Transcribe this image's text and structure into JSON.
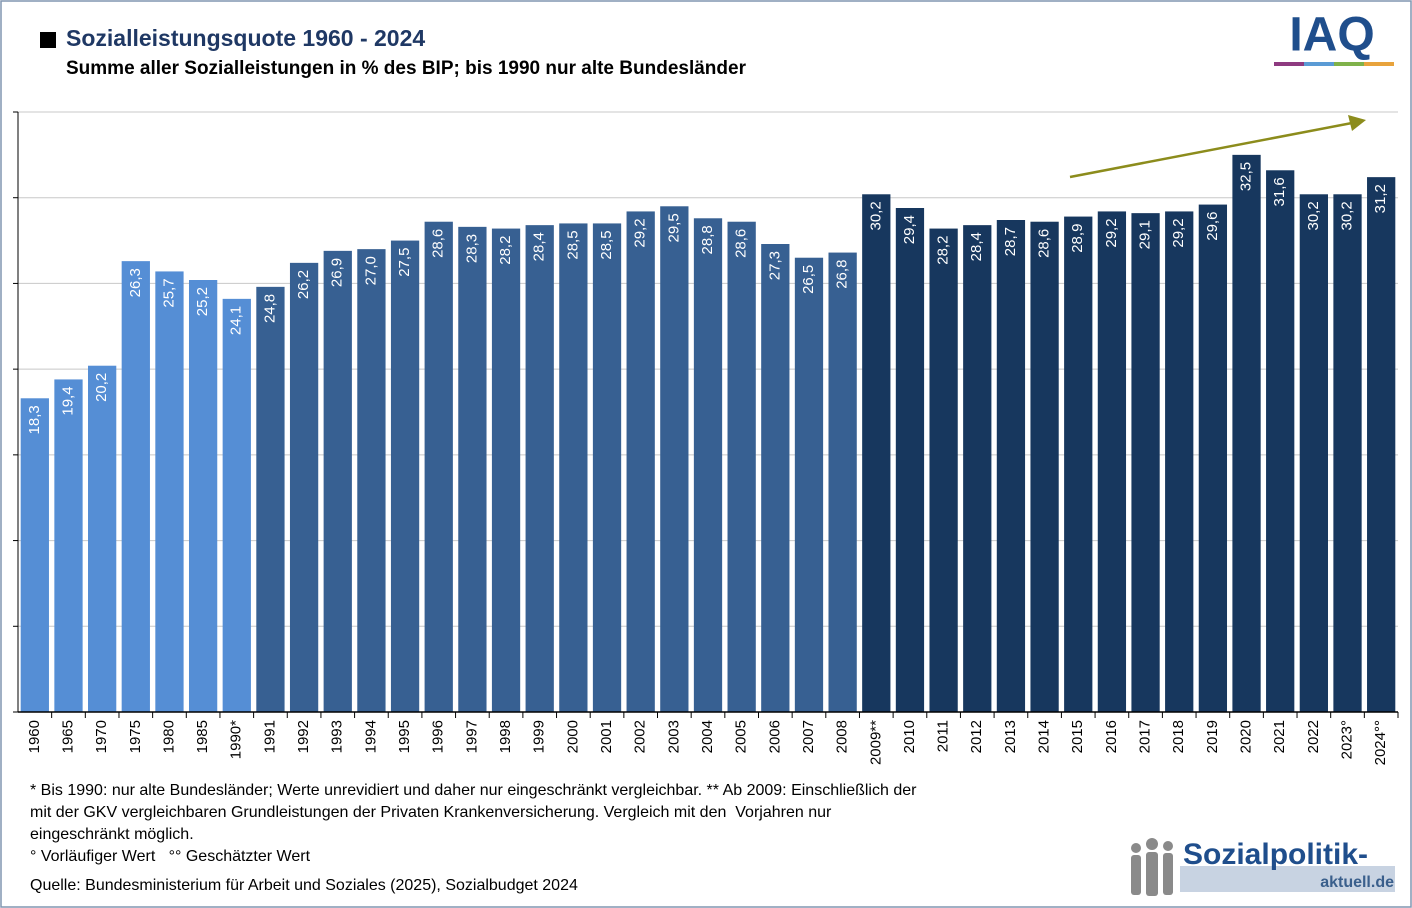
{
  "chart_data": {
    "type": "bar",
    "title": "Sozialleistungsquote 1960 - 2024",
    "subtitle": "Summe aller Sozialleistungen in % des BIP; bis 1990 nur alte Bundesländer",
    "categories": [
      "1960",
      "1965",
      "1970",
      "1975",
      "1980",
      "1985",
      "1990*",
      "1991",
      "1992",
      "1993",
      "1994",
      "1995",
      "1996",
      "1997",
      "1998",
      "1999",
      "2000",
      "2001",
      "2002",
      "2003",
      "2004",
      "2005",
      "2006",
      "2007",
      "2008",
      "2009**",
      "2010",
      "2011",
      "2012",
      "2013",
      "2014",
      "2015",
      "2016",
      "2017",
      "2018",
      "2019",
      "2020",
      "2021",
      "2022",
      "2023°",
      "2024°°"
    ],
    "values": [
      18.3,
      19.4,
      20.2,
      26.3,
      25.7,
      25.2,
      24.1,
      24.8,
      26.2,
      26.9,
      27.0,
      27.5,
      28.6,
      28.3,
      28.2,
      28.4,
      28.5,
      28.5,
      29.2,
      29.5,
      28.8,
      28.6,
      27.3,
      26.5,
      26.8,
      30.2,
      29.4,
      28.2,
      28.4,
      28.7,
      28.6,
      28.9,
      29.2,
      29.1,
      29.2,
      29.6,
      32.5,
      31.6,
      30.2,
      30.2,
      31.2
    ],
    "value_labels": [
      "18,3",
      "19,4",
      "20,2",
      "26,3",
      "25,7",
      "25,2",
      "24,1",
      "24,8",
      "26,2",
      "26,9",
      "27,0",
      "27,5",
      "28,6",
      "28,3",
      "28,2",
      "28,4",
      "28,5",
      "28,5",
      "29,2",
      "29,5",
      "28,8",
      "28,6",
      "27,3",
      "26,5",
      "26,8",
      "30,2",
      "29,4",
      "28,2",
      "28,4",
      "28,7",
      "28,6",
      "28,9",
      "29,2",
      "29,1",
      "29,2",
      "29,6",
      "32,5",
      "31,6",
      "30,2",
      "30,2",
      "31,2"
    ],
    "colors": [
      "#558ed5",
      "#558ed5",
      "#558ed5",
      "#558ed5",
      "#558ed5",
      "#558ed5",
      "#558ed5",
      "#376092",
      "#376092",
      "#376092",
      "#376092",
      "#376092",
      "#376092",
      "#376092",
      "#376092",
      "#376092",
      "#376092",
      "#376092",
      "#376092",
      "#376092",
      "#376092",
      "#376092",
      "#376092",
      "#376092",
      "#376092",
      "#17375e",
      "#17375e",
      "#17375e",
      "#17375e",
      "#17375e",
      "#17375e",
      "#17375e",
      "#17375e",
      "#17375e",
      "#17375e",
      "#17375e",
      "#17375e",
      "#17375e",
      "#17375e",
      "#17375e",
      "#17375e"
    ],
    "ylim": [
      0,
      35
    ],
    "yticks": [
      0,
      5,
      10,
      15,
      20,
      25,
      30,
      35
    ],
    "grid": true,
    "footnotes": [
      "* Bis 1990: nur alte Bundesländer; Werte unrevidiert und daher nur eingeschränkt vergleichbar. ** Ab 2009: Einschließlich der",
      "mit der GKV vergleichbaren Grundleistungen der Privaten Krankenversicherung. Vergleich mit den  Vorjahren nur",
      "eingeschränkt möglich.",
      "° Vorläufiger Wert   °° Geschätzter Wert"
    ],
    "source": "Quelle: Bundesministerium für Arbeit und Soziales (2025), Sozialbudget 2024"
  },
  "logos": {
    "iaq": "IAQ",
    "site_top": "Sozialpolitik-",
    "site_bottom": "aktuell.de"
  }
}
